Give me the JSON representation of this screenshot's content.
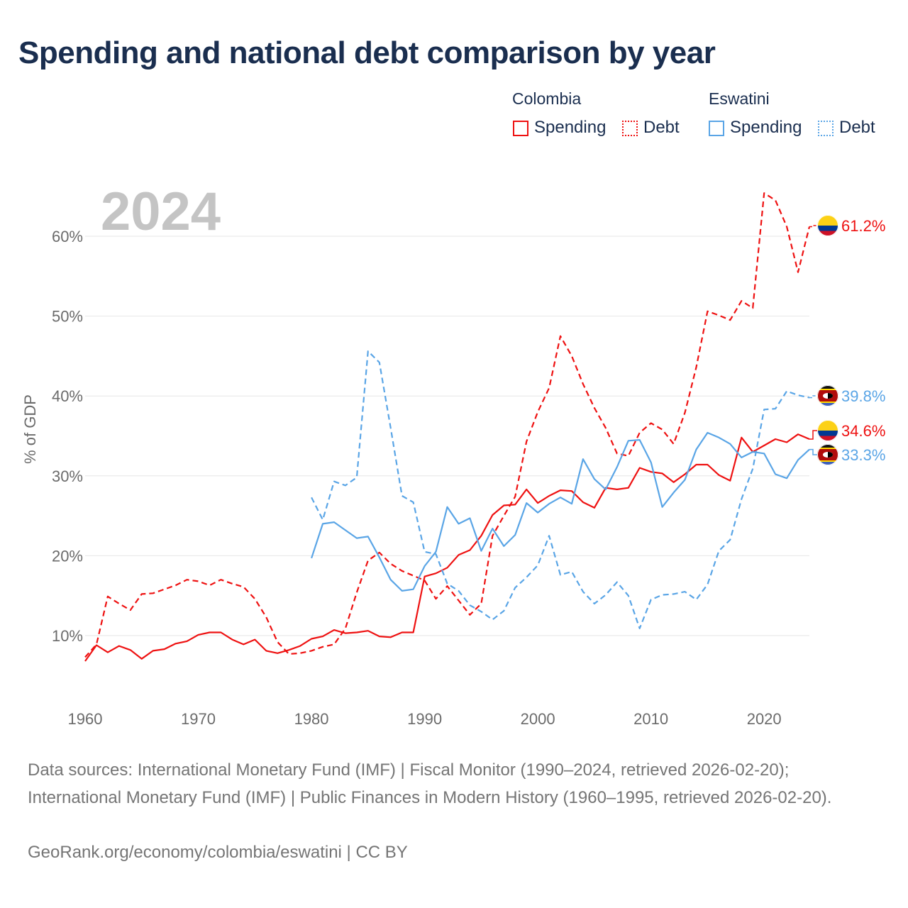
{
  "title": "Spending and national debt comparison by year",
  "legend": {
    "groups": [
      {
        "name": "Colombia",
        "items": [
          {
            "label": "Spending",
            "style": "solid"
          },
          {
            "label": "Debt",
            "style": "dotted"
          }
        ]
      },
      {
        "name": "Eswatini",
        "items": [
          {
            "label": "Spending",
            "style": "solid"
          },
          {
            "label": "Debt",
            "style": "dotted"
          }
        ]
      }
    ]
  },
  "colors": {
    "colombia": "#ee1111",
    "eswatini": "#5aa5e6",
    "grid": "#e6e6e6",
    "year": "#c4c4c4",
    "title": "#1a2e4f"
  },
  "chart_data": {
    "type": "line",
    "year_label": "2024",
    "ylabel": "% of GDP",
    "xlim": [
      1960,
      2024
    ],
    "ylim": [
      3,
      68
    ],
    "x_ticks": [
      1960,
      1970,
      1980,
      1990,
      2000,
      2010,
      2020
    ],
    "x_tick_labels": [
      "1960",
      "1970",
      "1980",
      "1990",
      "2000",
      "2010",
      "2020"
    ],
    "y_ticks": [
      10,
      20,
      30,
      40,
      50,
      60
    ],
    "y_tick_labels": [
      "10%",
      "20%",
      "30%",
      "40%",
      "50%",
      "60%"
    ],
    "series": [
      {
        "name": "Colombia Spending",
        "country": "colombia",
        "dash": false,
        "start": 1960,
        "values": [
          6.8,
          8.8,
          7.9,
          8.7,
          8.2,
          7.1,
          8.1,
          8.3,
          9.0,
          9.3,
          10.1,
          10.4,
          10.4,
          9.5,
          8.9,
          9.5,
          8.1,
          7.8,
          8.2,
          8.7,
          9.6,
          9.9,
          10.7,
          10.3,
          10.4,
          10.6,
          9.9,
          9.8,
          10.4,
          10.4,
          17.4,
          17.8,
          18.5,
          20.1,
          20.7,
          22.5,
          25.1,
          26.3,
          26.4,
          28.3,
          26.6,
          27.5,
          28.2,
          28.1,
          26.7,
          26.0,
          28.5,
          28.3,
          28.5,
          31.0,
          30.5,
          30.3,
          29.2,
          30.2,
          31.4,
          31.4,
          30.1,
          29.4,
          34.8,
          33.0,
          33.8,
          34.6,
          34.2,
          35.2,
          34.6
        ],
        "end_label": "34.6%"
      },
      {
        "name": "Colombia Debt",
        "country": "colombia",
        "dash": true,
        "start": 1960,
        "values": [
          7.3,
          8.9,
          14.9,
          14.0,
          13.2,
          15.2,
          15.3,
          15.8,
          16.3,
          17.0,
          16.8,
          16.3,
          17.0,
          16.5,
          16.1,
          14.6,
          12.3,
          9.2,
          7.7,
          7.8,
          8.1,
          8.6,
          8.9,
          10.9,
          15.4,
          19.4,
          20.4,
          19.0,
          18.1,
          17.5,
          16.9,
          14.6,
          16.2,
          14.4,
          12.6,
          14.0,
          22.5,
          25.0,
          27.4,
          34.3,
          38.0,
          41.0,
          47.5,
          45.0,
          41.5,
          38.5,
          36.0,
          32.8,
          32.5,
          35.4,
          36.6,
          35.8,
          34.0,
          37.9,
          43.6,
          50.6,
          50.1,
          49.5,
          51.9,
          51.0,
          65.4,
          64.5,
          61.2,
          55.5,
          61.2
        ],
        "end_label": "61.2%"
      },
      {
        "name": "Eswatini Spending",
        "country": "eswatini",
        "dash": false,
        "start": 1980,
        "values": [
          19.7,
          24.0,
          24.2,
          23.2,
          22.2,
          22.4,
          19.8,
          17.0,
          15.6,
          15.8,
          18.7,
          20.5,
          26.1,
          24.0,
          24.7,
          20.6,
          23.4,
          21.2,
          22.6,
          26.6,
          25.4,
          26.5,
          27.3,
          26.5,
          32.1,
          29.6,
          28.3,
          31.1,
          34.4,
          34.5,
          31.7,
          26.1,
          27.9,
          29.5,
          33.3,
          35.4,
          34.8,
          34.0,
          32.3,
          33.0,
          32.8,
          30.2,
          29.7,
          32.0,
          33.3
        ],
        "end_label": "33.3%"
      },
      {
        "name": "Eswatini Debt",
        "country": "eswatini",
        "dash": true,
        "start": 1980,
        "values": [
          27.3,
          24.5,
          29.3,
          28.8,
          29.8,
          45.6,
          44.2,
          36.0,
          27.5,
          26.7,
          20.5,
          20.2,
          16.5,
          15.6,
          13.8,
          13.0,
          12.0,
          13.1,
          16.0,
          17.3,
          18.8,
          22.5,
          17.6,
          18.0,
          15.5,
          14.0,
          15.1,
          16.7,
          15.0,
          10.9,
          14.5,
          15.1,
          15.2,
          15.5,
          14.5,
          16.4,
          20.6,
          22.0,
          27.1,
          30.9,
          38.3,
          38.4,
          40.6,
          40.1,
          39.8
        ],
        "end_label": "39.8%"
      }
    ]
  },
  "footer": {
    "source_text": "Data sources: International Monetary Fund (IMF) | Fiscal Monitor (1990–2024, retrieved 2026-02-20); International Monetary Fund (IMF) | Public Finances in Modern History (1960–1995, retrieved 2026-02-20).",
    "url_text": "GeoRank.org/economy/colombia/eswatini | CC BY"
  }
}
